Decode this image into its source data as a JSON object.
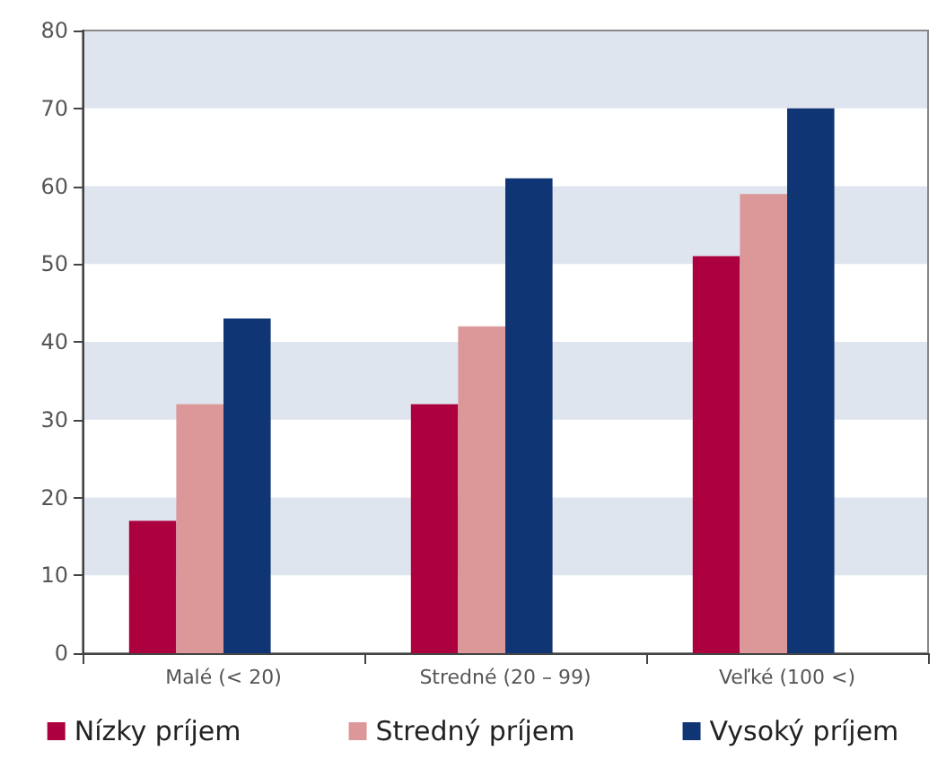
{
  "chart_data": {
    "type": "bar",
    "categories": [
      "Malé (< 20)",
      "Stredné (20 – 99)",
      "Veľké (100 <)"
    ],
    "series": [
      {
        "name": "Nízky príjem",
        "color": "#ad003e",
        "values": [
          17,
          32,
          51
        ]
      },
      {
        "name": "Stredný príjem",
        "color": "#dc9899",
        "values": [
          32,
          42,
          59
        ]
      },
      {
        "name": "Vysoký príjem",
        "color": "#0f3574",
        "values": [
          43,
          61,
          70
        ]
      }
    ],
    "bands": [
      {
        "axis": "y",
        "from": 10,
        "to": 20,
        "color": "#dfe5ef"
      },
      {
        "axis": "y",
        "from": 30,
        "to": 40,
        "color": "#dfe5ef"
      },
      {
        "axis": "y",
        "from": 50,
        "to": 60,
        "color": "#dfe5ef"
      },
      {
        "axis": "y",
        "from": 70,
        "to": 80,
        "color": "#dfe5ef"
      }
    ],
    "ylim": [
      0,
      80
    ],
    "yticks": [
      0,
      10,
      20,
      30,
      40,
      50,
      60,
      70,
      80
    ],
    "legend": "bottom"
  }
}
